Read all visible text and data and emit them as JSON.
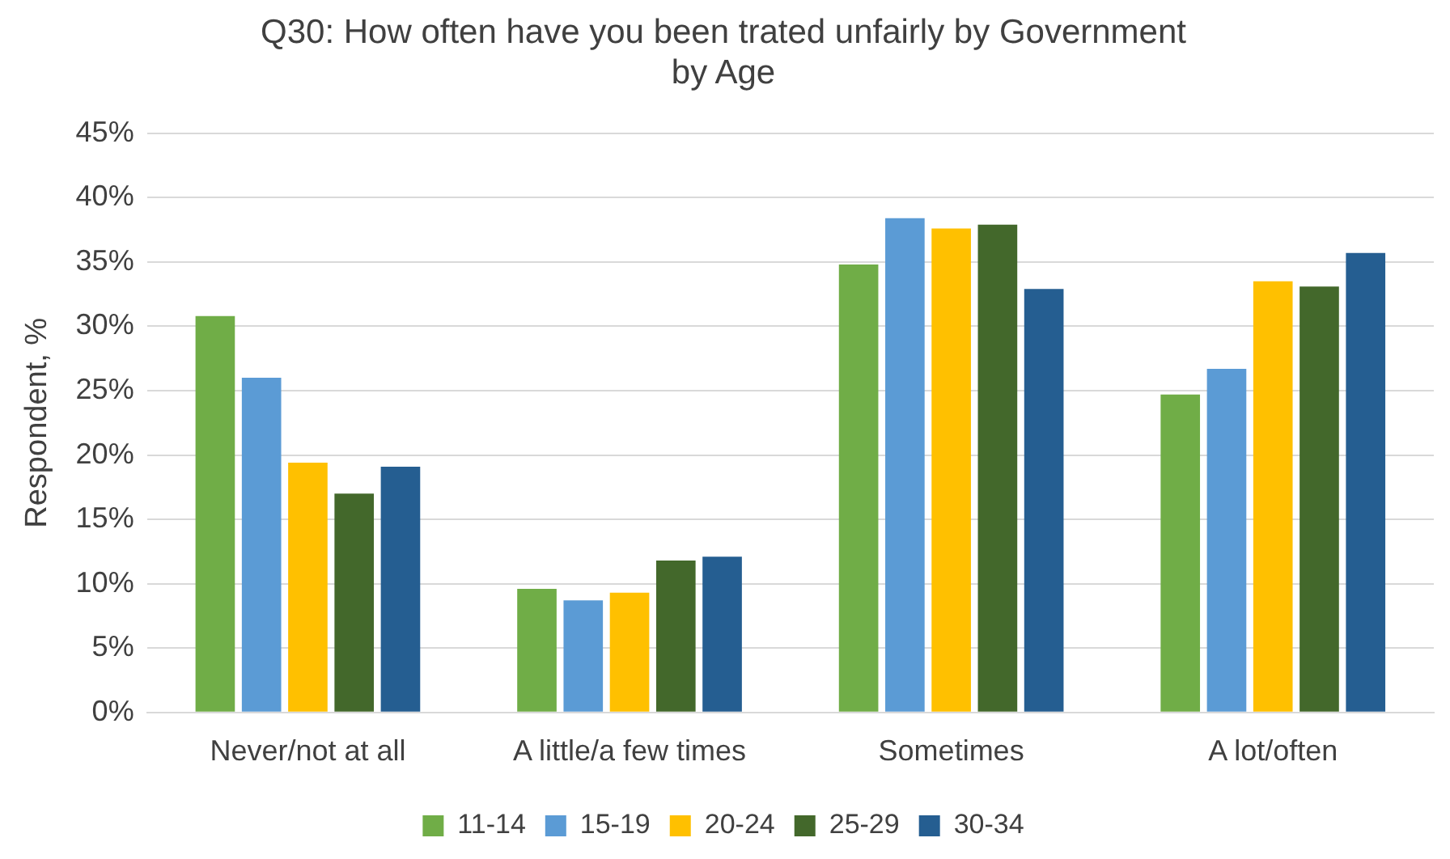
{
  "chart_data": {
    "type": "bar",
    "title": "Q30: How often have you been trated unfairly by Government by Age",
    "ylabel": "Respondent, %",
    "categories": [
      "Never/not at all",
      "A little/a few times",
      "Sometimes",
      "A lot/often"
    ],
    "series": [
      {
        "name": "11-14",
        "color": "#70ad47",
        "values": [
          30.8,
          9.6,
          34.8,
          24.7
        ]
      },
      {
        "name": "15-19",
        "color": "#5b9bd5",
        "values": [
          26,
          8.7,
          38.4,
          26.7
        ]
      },
      {
        "name": "20-24",
        "color": "#ffc000",
        "values": [
          19.4,
          9.3,
          37.6,
          33.5
        ]
      },
      {
        "name": "25-29",
        "color": "#43682b",
        "values": [
          17,
          11.8,
          37.9,
          33.1
        ]
      },
      {
        "name": "30-34",
        "color": "#255e91",
        "values": [
          19.1,
          12.1,
          32.9,
          35.7
        ]
      }
    ],
    "ylim": [
      0,
      45
    ],
    "yticks": [
      {
        "value": 0,
        "label": "0%"
      },
      {
        "value": 5,
        "label": "5%"
      },
      {
        "value": 10,
        "label": "10%"
      },
      {
        "value": 15,
        "label": "15%"
      },
      {
        "value": 20,
        "label": "20%"
      },
      {
        "value": 25,
        "label": "25%"
      },
      {
        "value": 30,
        "label": "30%"
      },
      {
        "value": 35,
        "label": "35%"
      },
      {
        "value": 40,
        "label": "40%"
      },
      {
        "value": 45,
        "label": "45%"
      }
    ],
    "grid": "y",
    "legend": "bottom"
  }
}
